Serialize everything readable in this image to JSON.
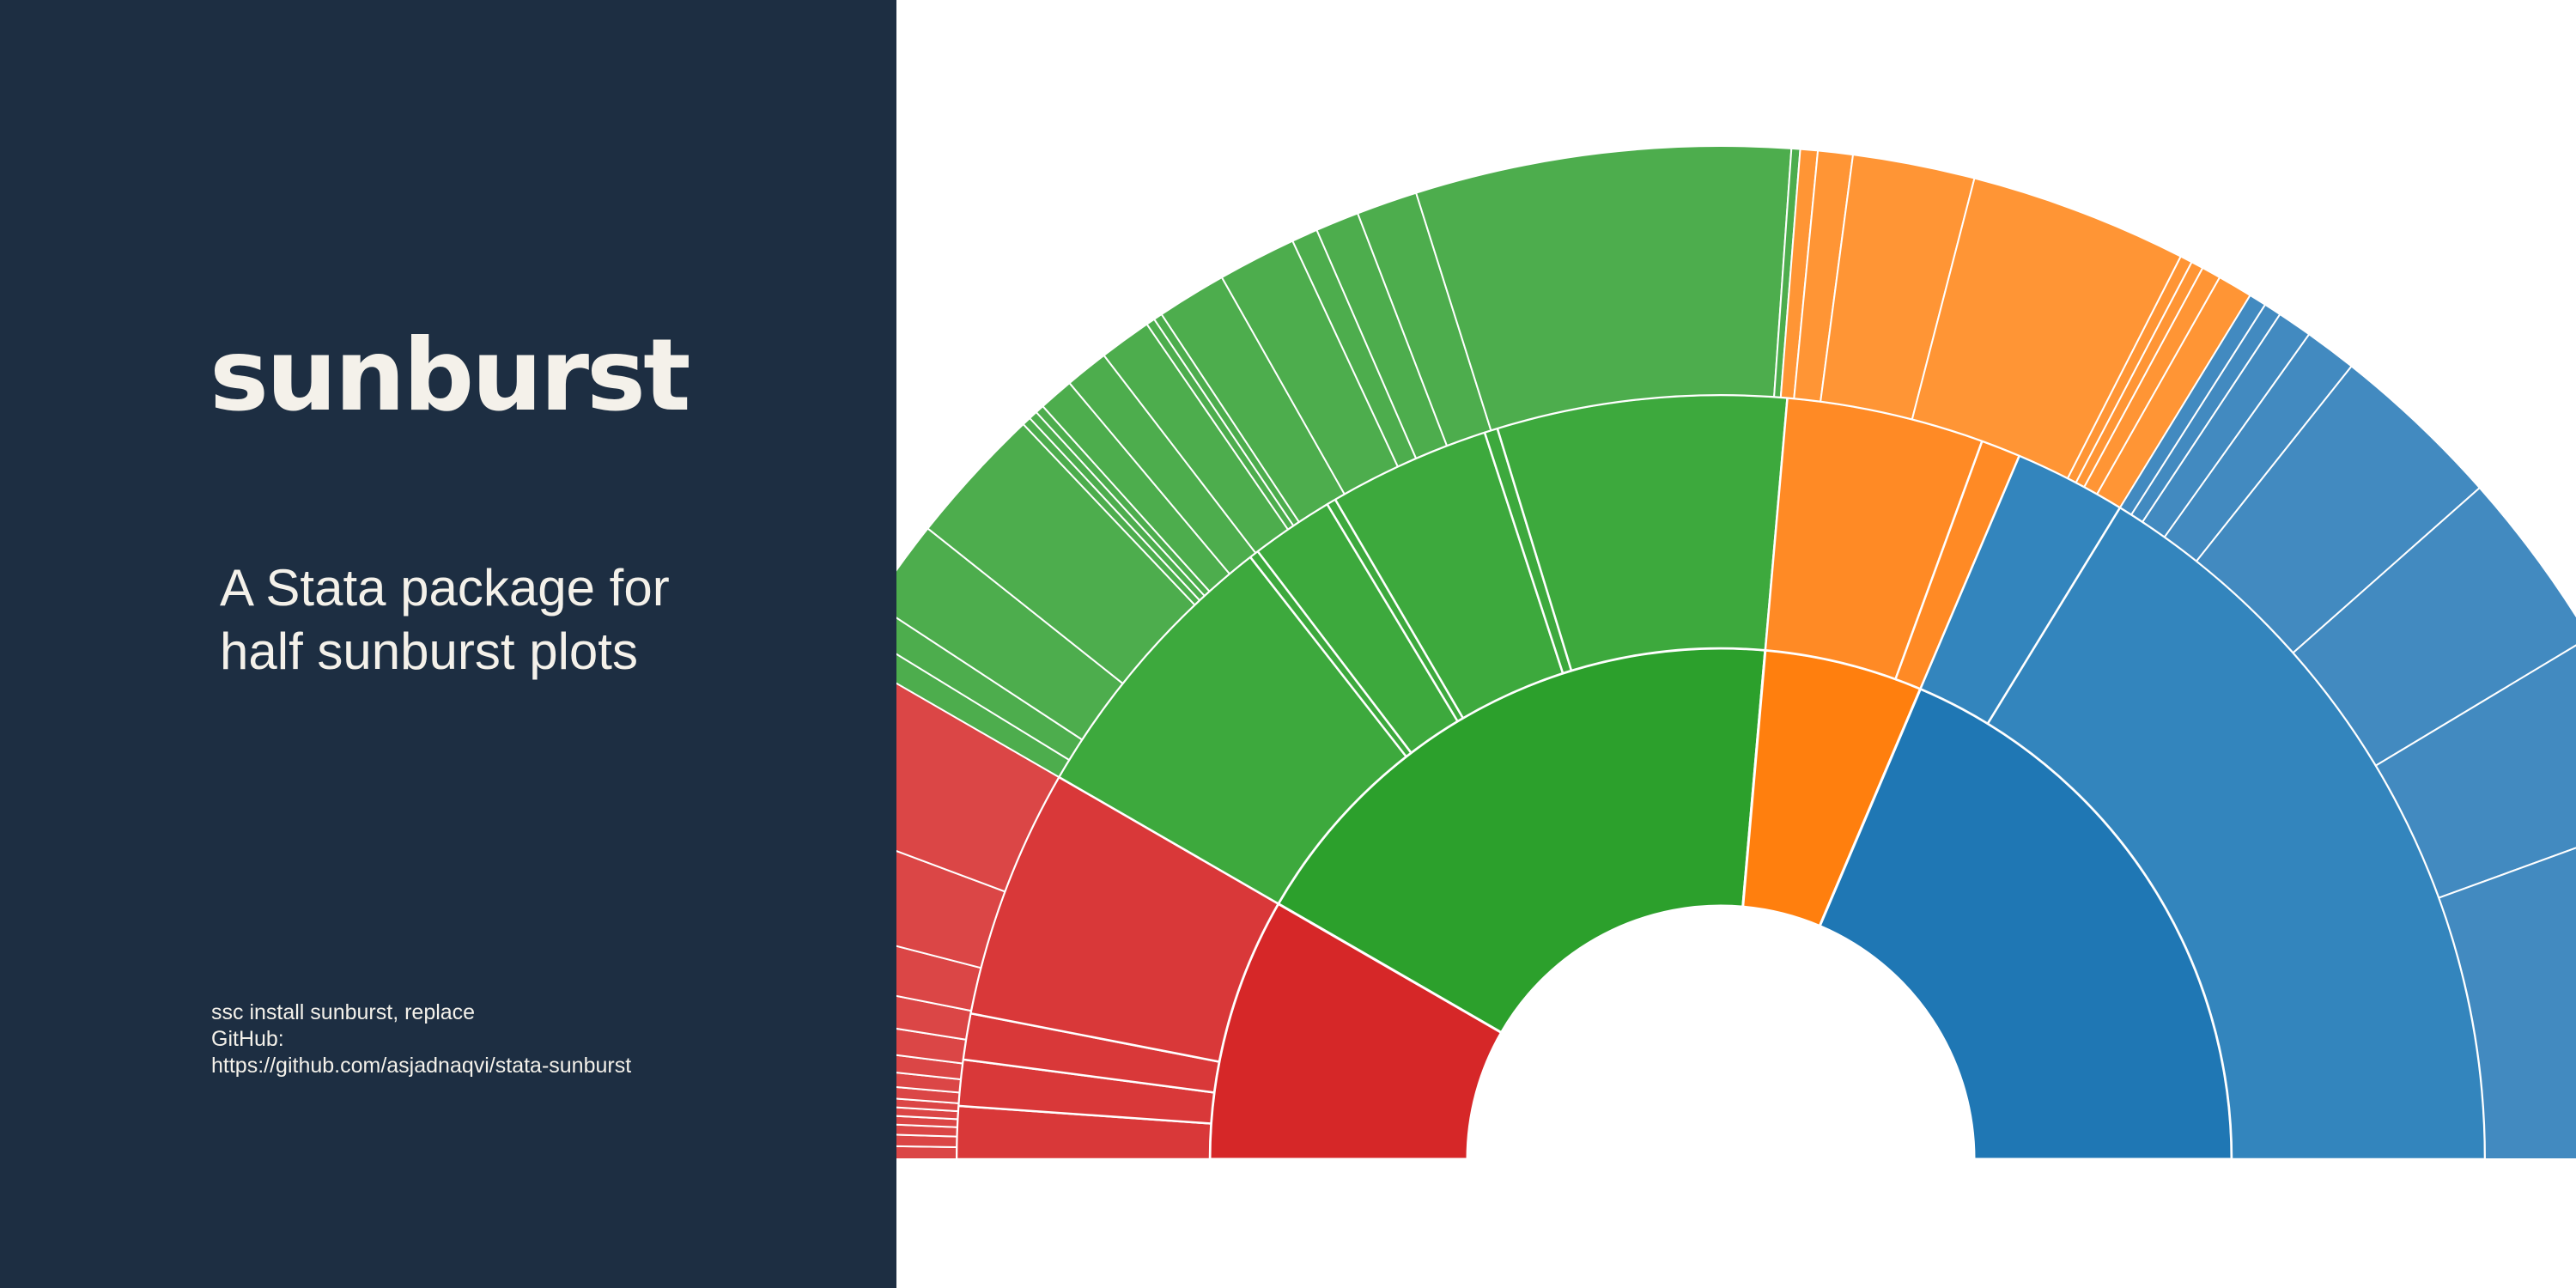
{
  "panel": {
    "title": "sunburst",
    "subtitle_lines": [
      "A Stata package for",
      "half sunburst plots"
    ],
    "install_lines": [
      "ssc install sunburst, replace",
      "GitHub:"
    ],
    "github_url": "https://github.com/asjadnaqvi/stata-sunburst"
  },
  "chart_data": {
    "type": "sunburst",
    "layout": "half",
    "levels": 3,
    "palette": {
      "red": "#d62728",
      "green": "#2ca02c",
      "orange": "#ff7f0e",
      "blue": "#1f77b4",
      "edge": "#ffffff"
    },
    "level_colors": {
      "red": [
        "#d62728",
        "#d93839",
        "#db4646"
      ],
      "green": [
        "#2ca02c",
        "#3da93d",
        "#4dad4d"
      ],
      "orange": [
        "#ff7f0e",
        "#ff8a25",
        "#ff9535"
      ],
      "blue": [
        "#1f77b4",
        "#3385bd",
        "#428ac0"
      ]
    },
    "angle_units": "degrees, 0 = left end of baseline, 180 = right end",
    "segments": [
      {
        "group": "red",
        "level": 1,
        "start": 0,
        "end": 30
      },
      {
        "group": "green",
        "level": 1,
        "start": 30,
        "end": 95
      },
      {
        "group": "orange",
        "level": 1,
        "start": 95,
        "end": 113
      },
      {
        "group": "blue",
        "level": 1,
        "start": 113,
        "end": 180
      },
      {
        "group": "red",
        "level": 2,
        "start": 0,
        "end": 4
      },
      {
        "group": "red",
        "level": 2,
        "start": 4,
        "end": 7.5
      },
      {
        "group": "red",
        "level": 2,
        "start": 7.5,
        "end": 11
      },
      {
        "group": "red",
        "level": 2,
        "start": 11,
        "end": 30
      },
      {
        "group": "green",
        "level": 2,
        "start": 30,
        "end": 52
      },
      {
        "group": "green",
        "level": 2,
        "start": 52,
        "end": 52.7
      },
      {
        "group": "green",
        "level": 2,
        "start": 52.7,
        "end": 59
      },
      {
        "group": "green",
        "level": 2,
        "start": 59,
        "end": 59.7
      },
      {
        "group": "green",
        "level": 2,
        "start": 59.7,
        "end": 72
      },
      {
        "group": "green",
        "level": 2,
        "start": 72,
        "end": 73
      },
      {
        "group": "green",
        "level": 2,
        "start": 73,
        "end": 95
      },
      {
        "group": "orange",
        "level": 2,
        "start": 95,
        "end": 110
      },
      {
        "group": "orange",
        "level": 2,
        "start": 110,
        "end": 113
      },
      {
        "group": "blue",
        "level": 2,
        "start": 113,
        "end": 121.5
      },
      {
        "group": "blue",
        "level": 2,
        "start": 121.5,
        "end": 180
      },
      {
        "group": "red",
        "level": 3,
        "start": 0,
        "end": 0.9
      },
      {
        "group": "red",
        "level": 3,
        "start": 0.9,
        "end": 1.7
      },
      {
        "group": "red",
        "level": 3,
        "start": 1.7,
        "end": 2.4
      },
      {
        "group": "red",
        "level": 3,
        "start": 2.4,
        "end": 3.0
      },
      {
        "group": "red",
        "level": 3,
        "start": 3.0,
        "end": 3.6
      },
      {
        "group": "red",
        "level": 3,
        "start": 3.6,
        "end": 4.2
      },
      {
        "group": "red",
        "level": 3,
        "start": 4.2,
        "end": 5.0
      },
      {
        "group": "red",
        "level": 3,
        "start": 5.0,
        "end": 6.0
      },
      {
        "group": "red",
        "level": 3,
        "start": 6.0,
        "end": 7.2
      },
      {
        "group": "red",
        "level": 3,
        "start": 7.2,
        "end": 9.0
      },
      {
        "group": "red",
        "level": 3,
        "start": 9.0,
        "end": 11.2
      },
      {
        "group": "red",
        "level": 3,
        "start": 11.2,
        "end": 14.5
      },
      {
        "group": "red",
        "level": 3,
        "start": 14.5,
        "end": 20.5
      },
      {
        "group": "red",
        "level": 3,
        "start": 20.5,
        "end": 30
      },
      {
        "group": "green",
        "level": 3,
        "start": 30,
        "end": 31.5
      },
      {
        "group": "green",
        "level": 3,
        "start": 31.5,
        "end": 33.3
      },
      {
        "group": "green",
        "level": 3,
        "start": 33.3,
        "end": 38.5
      },
      {
        "group": "green",
        "level": 3,
        "start": 38.5,
        "end": 46.5
      },
      {
        "group": "green",
        "level": 3,
        "start": 46.5,
        "end": 47.0
      },
      {
        "group": "green",
        "level": 3,
        "start": 47.0,
        "end": 47.5
      },
      {
        "group": "green",
        "level": 3,
        "start": 47.5,
        "end": 48.0
      },
      {
        "group": "green",
        "level": 3,
        "start": 48.0,
        "end": 50.0
      },
      {
        "group": "green",
        "level": 3,
        "start": 50.0,
        "end": 52.5
      },
      {
        "group": "green",
        "level": 3,
        "start": 52.5,
        "end": 55.5
      },
      {
        "group": "green",
        "level": 3,
        "start": 55.5,
        "end": 56.0
      },
      {
        "group": "green",
        "level": 3,
        "start": 56.0,
        "end": 56.5
      },
      {
        "group": "green",
        "level": 3,
        "start": 56.5,
        "end": 60.5
      },
      {
        "group": "green",
        "level": 3,
        "start": 60.5,
        "end": 65.0
      },
      {
        "group": "green",
        "level": 3,
        "start": 65.0,
        "end": 66.5
      },
      {
        "group": "green",
        "level": 3,
        "start": 66.5,
        "end": 69.0
      },
      {
        "group": "green",
        "level": 3,
        "start": 69.0,
        "end": 72.5
      },
      {
        "group": "green",
        "level": 3,
        "start": 72.5,
        "end": 94.0
      },
      {
        "group": "green",
        "level": 3,
        "start": 94.0,
        "end": 94.5
      },
      {
        "group": "orange",
        "level": 3,
        "start": 94.5,
        "end": 95.5
      },
      {
        "group": "orange",
        "level": 3,
        "start": 95.5,
        "end": 97.5
      },
      {
        "group": "orange",
        "level": 3,
        "start": 97.5,
        "end": 104.5
      },
      {
        "group": "orange",
        "level": 3,
        "start": 104.5,
        "end": 117.0
      },
      {
        "group": "orange",
        "level": 3,
        "start": 117.0,
        "end": 117.7
      },
      {
        "group": "orange",
        "level": 3,
        "start": 117.7,
        "end": 118.4
      },
      {
        "group": "orange",
        "level": 3,
        "start": 118.4,
        "end": 119.5
      },
      {
        "group": "orange",
        "level": 3,
        "start": 119.5,
        "end": 121.5
      },
      {
        "group": "blue",
        "level": 3,
        "start": 121.5,
        "end": 122.5
      },
      {
        "group": "blue",
        "level": 3,
        "start": 122.5,
        "end": 123.5
      },
      {
        "group": "blue",
        "level": 3,
        "start": 123.5,
        "end": 125.5
      },
      {
        "group": "blue",
        "level": 3,
        "start": 125.5,
        "end": 128.5
      },
      {
        "group": "blue",
        "level": 3,
        "start": 128.5,
        "end": 138.5
      },
      {
        "group": "blue",
        "level": 3,
        "start": 138.5,
        "end": 149.0
      },
      {
        "group": "blue",
        "level": 3,
        "start": 149.0,
        "end": 160.0
      },
      {
        "group": "blue",
        "level": 3,
        "start": 160.0,
        "end": 180.0
      }
    ]
  }
}
